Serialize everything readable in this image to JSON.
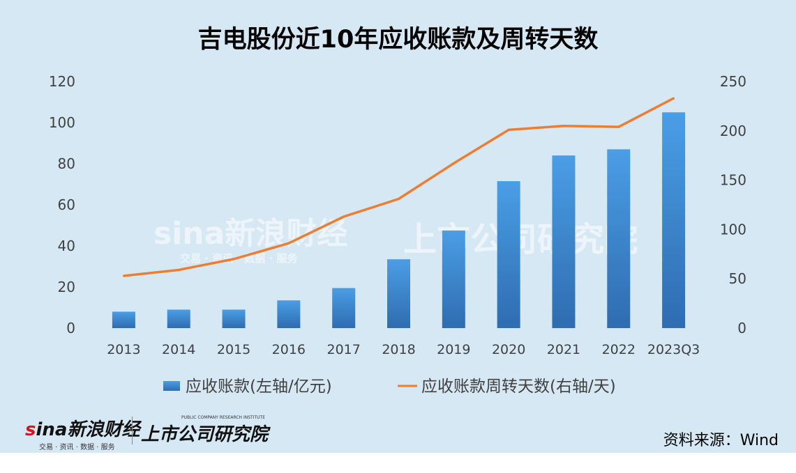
{
  "title": "吉电股份近10年应收账款及周转天数",
  "source": "资料来源：Wind",
  "watermark": {
    "brand": "sina新浪财经",
    "services": "交易 · 资讯 · 数据 · 服务",
    "institute": "上市公司研究院",
    "institute_en": "PUBLIC COMPANY RESEARCH INSTITUTE"
  },
  "colors": {
    "background": "#d7e8f5",
    "bar_top": "#4a9ee6",
    "bar_bottom": "#2f6cb0",
    "line": "#ed7d31",
    "text": "#404040"
  },
  "chart_data": {
    "type": "bar",
    "title": "吉电股份近10年应收账款及周转天数",
    "categories": [
      "2013",
      "2014",
      "2015",
      "2016",
      "2017",
      "2018",
      "2019",
      "2020",
      "2021",
      "2022",
      "2023Q3"
    ],
    "series": [
      {
        "name": "应收账款(左轴/亿元)",
        "type": "bar",
        "axis": "left",
        "values": [
          8,
          9,
          9,
          13.5,
          19.5,
          33.5,
          47.5,
          71.5,
          84,
          87,
          105
        ]
      },
      {
        "name": "应收账款周转天数(右轴/天)",
        "type": "line",
        "axis": "right",
        "values": [
          53,
          59,
          70,
          86,
          113,
          131,
          167,
          201,
          205,
          204,
          233
        ]
      }
    ],
    "left_axis": {
      "ylim": [
        0,
        120
      ],
      "ticks": [
        "0",
        "20",
        "40",
        "60",
        "80",
        "100",
        "120"
      ]
    },
    "right_axis": {
      "ylim": [
        0,
        250
      ],
      "ticks": [
        "0",
        "50",
        "100",
        "150",
        "200",
        "250"
      ]
    },
    "grid": false,
    "legend_position": "bottom"
  }
}
